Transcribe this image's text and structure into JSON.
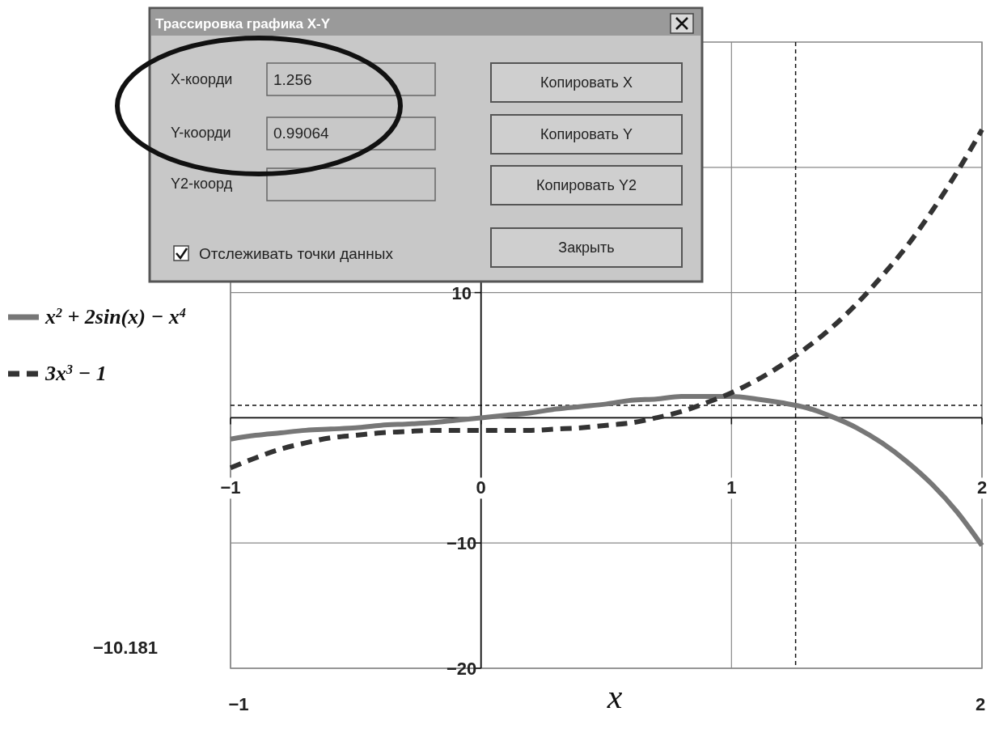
{
  "chart_data": {
    "type": "line",
    "xlabel": "x",
    "x": [
      -1,
      -0.9,
      -0.8,
      -0.7,
      -0.6,
      -0.5,
      -0.4,
      -0.3,
      -0.2,
      -0.1,
      0,
      0.1,
      0.2,
      0.3,
      0.4,
      0.5,
      0.6,
      0.7,
      0.8,
      0.9,
      1,
      1.1,
      1.2,
      1.3,
      1.4,
      1.5,
      1.6,
      1.7,
      1.8,
      1.9,
      2
    ],
    "series": [
      {
        "name": "x$^{2}$ + 2sin(x) − x$^{4}$",
        "color": "#777777",
        "line_style": "solid",
        "values": [
          -1.7,
          -1.4,
          -1.2,
          -1.0,
          -0.9,
          -0.8,
          -0.6,
          -0.5,
          -0.4,
          -0.2,
          0,
          0.2,
          0.4,
          0.7,
          0.9,
          1.1,
          1.4,
          1.5,
          1.7,
          1.7,
          1.7,
          1.5,
          1.2,
          0.8,
          0.1,
          -0.8,
          -2.0,
          -3.5,
          -5.3,
          -7.5,
          -10.2
        ]
      },
      {
        "name": "3x$^{3}$ − 1",
        "color": "#333333",
        "line_style": "dashed",
        "values": [
          -4.0,
          -3.2,
          -2.5,
          -2.0,
          -1.6,
          -1.4,
          -1.2,
          -1.1,
          -1.0,
          -1.0,
          -1.0,
          -1.0,
          -1.0,
          -0.9,
          -0.8,
          -0.6,
          -0.4,
          0.0,
          0.5,
          1.2,
          2.0,
          3.0,
          4.2,
          5.6,
          7.2,
          9.1,
          11.3,
          13.7,
          16.5,
          19.6,
          23.0
        ]
      }
    ],
    "xlim": [
      -1,
      2
    ],
    "xticks": [
      -1,
      0,
      1,
      2
    ],
    "ylim": [
      -20,
      30
    ],
    "yticks": [
      -20,
      -10,
      {
        "value": 0,
        "label": null
      },
      10,
      {
        "value": 20,
        "label": null
      }
    ],
    "grid": true,
    "legend": "left",
    "ref_lines": [
      {
        "axis": "x",
        "value": 1.256,
        "line_style": "dashed",
        "color": "#111111"
      },
      {
        "axis": "y",
        "value": 0.99064,
        "line_style": "dashed",
        "color": "#111111"
      }
    ],
    "annotations": [
      "−1",
      "2",
      "−10.181",
      "Трассировка графика X-Y",
      "X-коорди",
      "1.256",
      "Y-коорди",
      "0.99064",
      "Y2-коорд",
      "Копировать X",
      "Копировать Y",
      "Копировать Y2",
      "Закрыть",
      "Отслеживать точки данных"
    ]
  }
}
